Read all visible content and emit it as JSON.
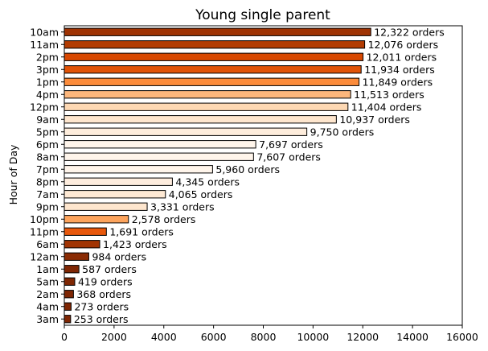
{
  "chart_data": {
    "type": "bar",
    "orientation": "horizontal",
    "title": "Young single parent",
    "xlabel": "",
    "ylabel": "Hour of Day",
    "xlim": [
      0,
      16000
    ],
    "xticks": [
      0,
      2000,
      4000,
      6000,
      8000,
      10000,
      12000,
      14000,
      16000
    ],
    "grid": false,
    "legend": "none",
    "label_suffix": " orders",
    "categories": [
      "10am",
      "11am",
      "2pm",
      "3pm",
      "1pm",
      "4pm",
      "12pm",
      "9am",
      "5pm",
      "6pm",
      "8am",
      "7pm",
      "8pm",
      "7am",
      "9pm",
      "10pm",
      "11pm",
      "6am",
      "12am",
      "1am",
      "5am",
      "2am",
      "4am",
      "3am"
    ],
    "values": [
      12322,
      12076,
      12011,
      11934,
      11849,
      11513,
      11404,
      10937,
      9750,
      7697,
      7607,
      5960,
      4345,
      4065,
      3331,
      2578,
      1691,
      1423,
      984,
      587,
      419,
      368,
      273,
      253
    ],
    "colors": [
      "#9f3303",
      "#b23c02",
      "#d84801",
      "#e15307",
      "#fd8c3b",
      "#fdb77c",
      "#fdd8b3",
      "#fee6ce",
      "#feeddc",
      "#fff5eb",
      "#fff5eb",
      "#fff5eb",
      "#feedde",
      "#fee9d4",
      "#fee6ce",
      "#fda45d",
      "#e8580c",
      "#a13403",
      "#8a2b03",
      "#7f2704",
      "#7f2704",
      "#7f2704",
      "#7f2704",
      "#7f2704"
    ]
  }
}
